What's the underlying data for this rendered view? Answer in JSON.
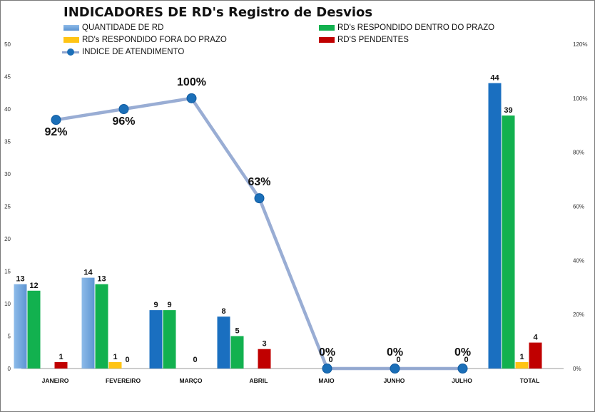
{
  "chart_data": {
    "type": "bar",
    "title": "INDICADORES DE RD's Registro de Desvios",
    "categories": [
      "JANEIRO",
      "FEVEREIRO",
      "MARÇO",
      "ABRIL",
      "MAIO",
      "JUNHO",
      "JULHO",
      "TOTAL"
    ],
    "series": [
      {
        "name": "QUANTIDADE DE RD",
        "values": [
          13,
          14,
          9,
          8,
          null,
          null,
          null,
          44
        ]
      },
      {
        "name": "RD's RESPONDIDO DENTRO DO PRAZO",
        "values": [
          12,
          13,
          9,
          5,
          null,
          null,
          null,
          39
        ]
      },
      {
        "name": "RD's RESPONDIDO FORA DO PRAZO",
        "values": [
          null,
          1,
          null,
          null,
          null,
          null,
          null,
          1
        ]
      },
      {
        "name": "RD'S PENDENTES",
        "values": [
          1,
          0,
          0,
          3,
          0,
          0,
          0,
          4
        ]
      }
    ],
    "line_series": {
      "name": "INDICE DE ATENDIMENTO",
      "values": [
        92,
        96,
        100,
        63,
        0,
        0,
        0
      ],
      "labels": [
        "92%",
        "96%",
        "100%",
        "63%",
        "0%",
        "0%",
        "0%"
      ]
    },
    "ylim": [
      0,
      50
    ],
    "yticks": [
      0,
      5,
      10,
      15,
      20,
      25,
      30,
      35,
      40,
      45,
      50
    ],
    "y2lim": [
      0,
      120
    ],
    "y2ticks": [
      "0%",
      "20%",
      "40%",
      "60%",
      "80%",
      "100%",
      "120%"
    ],
    "legend_position": "top",
    "colors": {
      "qty_light": "#6fa4dc",
      "qty_dark": "#1a6fc0",
      "inside": "#12b14f",
      "outside": "#ffc414",
      "pending": "#c00000",
      "line": "#8ea4cf",
      "marker": "#1b6fb8"
    }
  }
}
